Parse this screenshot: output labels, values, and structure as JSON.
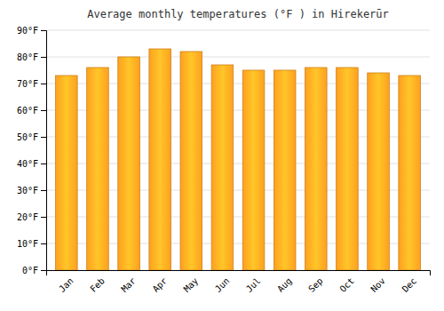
{
  "chart_data": {
    "type": "bar",
    "title": "Average monthly temperatures (°F ) in Hirekerūr",
    "categories": [
      "Jan",
      "Feb",
      "Mar",
      "Apr",
      "May",
      "Jun",
      "Jul",
      "Aug",
      "Sep",
      "Oct",
      "Nov",
      "Dec"
    ],
    "values": [
      73,
      76,
      80,
      83,
      82,
      77,
      75,
      75,
      76,
      76,
      74,
      73
    ],
    "color": "#FFA020",
    "ylim": [
      0,
      90
    ],
    "yticks": [
      {
        "value": 0,
        "label": "0°F"
      },
      {
        "value": 10,
        "label": "10°F"
      },
      {
        "value": 20,
        "label": "20°F"
      },
      {
        "value": 30,
        "label": "30°F"
      },
      {
        "value": 40,
        "label": "40°F"
      },
      {
        "value": 50,
        "label": "50°F"
      },
      {
        "value": 60,
        "label": "60°F"
      },
      {
        "value": 70,
        "label": "70°F"
      },
      {
        "value": 80,
        "label": "80°F"
      },
      {
        "value": 90,
        "label": "90°F"
      }
    ],
    "grid": true
  }
}
